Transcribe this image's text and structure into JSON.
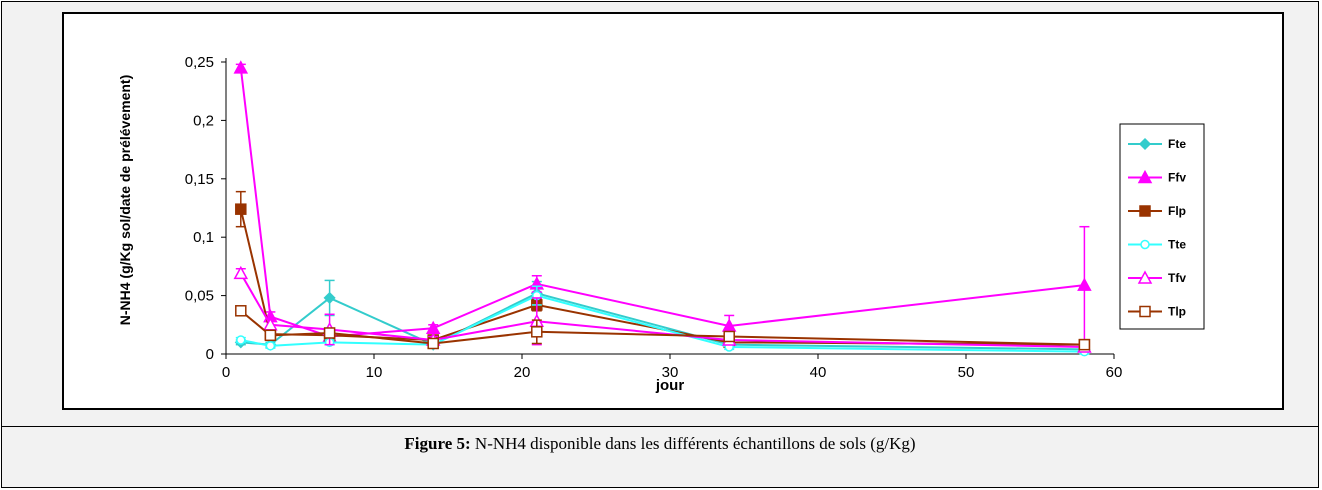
{
  "caption": {
    "label": "Figure 5:",
    "text": " N-NH4 disponible dans les différents échantillons de sols (g/Kg)"
  },
  "chart_data": {
    "type": "line",
    "title": "",
    "xlabel": "jour",
    "ylabel": "N-NH4 (g/Kg sol/date de prélévement)",
    "xlim": [
      0,
      60
    ],
    "ylim": [
      0,
      0.25
    ],
    "xticks": [
      "0",
      "10",
      "20",
      "30",
      "40",
      "50",
      "60"
    ],
    "yticks": [
      "0",
      "0,05",
      "0,1",
      "0,15",
      "0,2",
      "0,25"
    ],
    "grid": false,
    "legend_position": "right",
    "x": [
      1,
      3,
      7,
      14,
      21,
      34,
      58
    ],
    "series": [
      {
        "name": "Fte",
        "color": "#33cccc",
        "marker": "diamond",
        "filled": true,
        "values": [
          0.01,
          0.008,
          0.048,
          0.008,
          0.052,
          0.008,
          0.004
        ],
        "errors": [
          0.002,
          0.002,
          0.015,
          0.002,
          0.01,
          0.002,
          0.002
        ]
      },
      {
        "name": "Ffv",
        "color": "#ff00ff",
        "marker": "triangle",
        "filled": true,
        "values": [
          0.245,
          0.032,
          0.015,
          0.022,
          0.06,
          0.024,
          0.059
        ],
        "errors": [
          0.003,
          0.004,
          0.004,
          0.003,
          0.007,
          0.009,
          0.05
        ]
      },
      {
        "name": "Flp",
        "color": "#993300",
        "marker": "square",
        "filled": true,
        "values": [
          0.124,
          0.017,
          0.016,
          0.012,
          0.042,
          0.01,
          0.008
        ],
        "errors": [
          0.015,
          0.003,
          0.005,
          0.003,
          0.005,
          0.002,
          0.002
        ]
      },
      {
        "name": "Tte",
        "color": "#33ffff",
        "marker": "circle",
        "filled": false,
        "values": [
          0.012,
          0.007,
          0.01,
          0.008,
          0.05,
          0.006,
          0.002
        ],
        "errors": [
          0.002,
          0.002,
          0.002,
          0.002,
          0.008,
          0.002,
          0.002
        ]
      },
      {
        "name": "Tfv",
        "color": "#ff00ff",
        "marker": "triangle",
        "filled": false,
        "values": [
          0.069,
          0.025,
          0.021,
          0.012,
          0.028,
          0.012,
          0.006
        ],
        "errors": [
          0.004,
          0.005,
          0.013,
          0.003,
          0.02,
          0.003,
          0.002
        ]
      },
      {
        "name": "Tlp",
        "color": "#993300",
        "marker": "square",
        "filled": false,
        "values": [
          0.037,
          0.016,
          0.018,
          0.009,
          0.019,
          0.015,
          0.008
        ],
        "errors": [
          0.003,
          0.003,
          0.004,
          0.003,
          0.01,
          0.003,
          0.002
        ]
      }
    ]
  }
}
